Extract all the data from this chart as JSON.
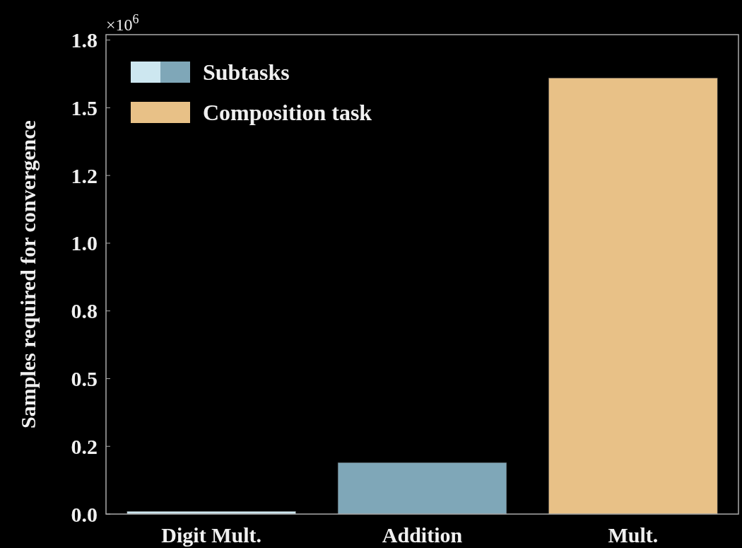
{
  "chart_data": {
    "type": "bar",
    "ylabel": "Samples required for convergence",
    "annotations": [
      "×10$^{6}$"
    ],
    "categories": [
      "Digit Mult.",
      "Addition",
      "Mult."
    ],
    "series": [
      {
        "name": "Subtasks",
        "colors": [
          "#cde7f0",
          "#7fa7b8",
          null
        ],
        "values": [
          0.01,
          0.19,
          null
        ]
      },
      {
        "name": "Composition task",
        "color": "#e8c187",
        "values": [
          null,
          null,
          1.61
        ]
      }
    ],
    "ylim": [
      0,
      1.77
    ],
    "yticks": [
      {
        "value": 0,
        "label": "0.0"
      },
      {
        "value": 0.25,
        "label": "0.2"
      },
      {
        "value": 0.5,
        "label": "0.5"
      },
      {
        "value": 0.75,
        "label": "0.8"
      },
      {
        "value": 1,
        "label": "1.0"
      },
      {
        "value": 1.25,
        "label": "1.2"
      },
      {
        "value": 1.5,
        "label": "1.5"
      },
      {
        "value": 1.75,
        "label": "1.8"
      }
    ],
    "legend": "top left",
    "grid": false
  }
}
